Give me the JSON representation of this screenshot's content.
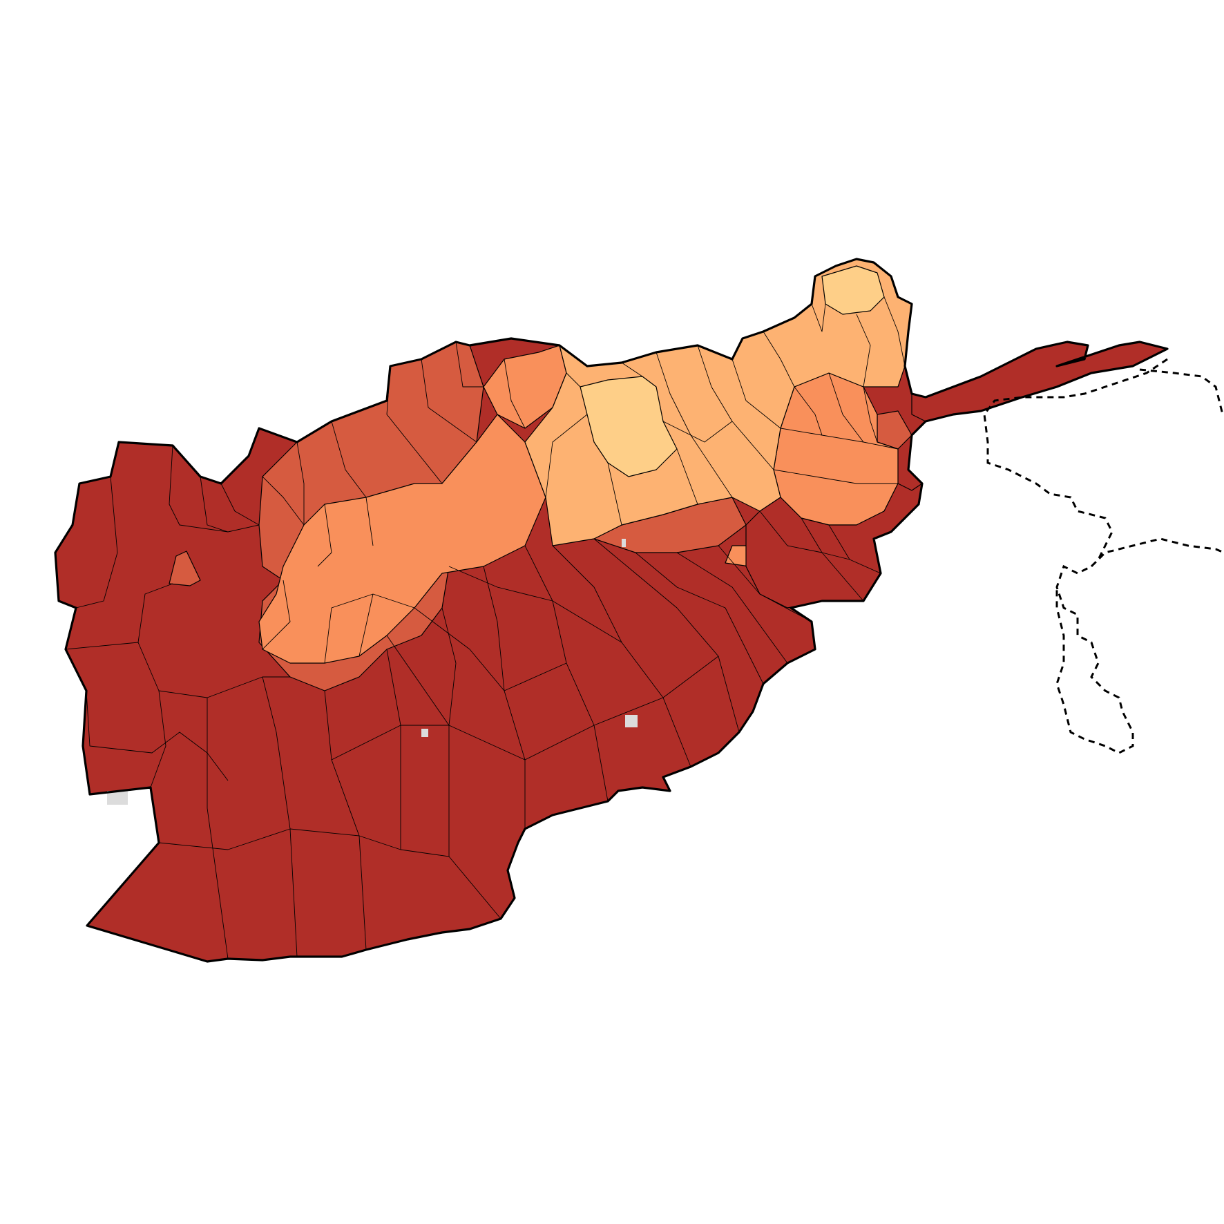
{
  "map": {
    "country": "",
    "palette": {
      "level1": "#fecf88",
      "level2": "#fdb272",
      "level3": "#f9905b",
      "level4": "#d65b40",
      "level5": "#b02e28",
      "no_data": "#dcdcdc",
      "border": "#000000",
      "background": "#ffffff"
    },
    "legend": null
  }
}
